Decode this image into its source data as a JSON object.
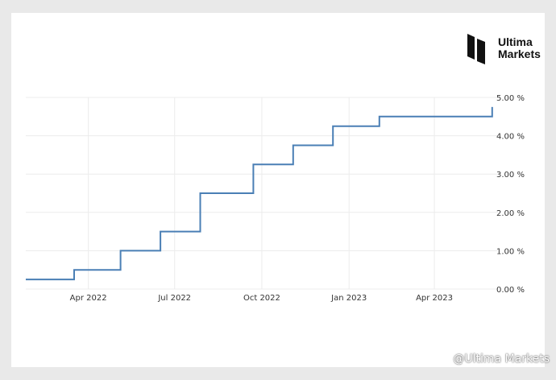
{
  "brand": {
    "line1": "Ultima",
    "line2": "Markets"
  },
  "watermark": {
    "text": "@Ultima Markets"
  },
  "colors": {
    "line": "#4a7fb5",
    "grid": "#ececec"
  },
  "chart_data": {
    "type": "line",
    "step": true,
    "title": "",
    "xlabel": "",
    "ylabel": "",
    "ylim": [
      0,
      5
    ],
    "y_ticks": [
      0,
      1,
      2,
      3,
      4,
      5
    ],
    "y_tick_labels": [
      "0.00 %",
      "1.00 %",
      "2.00 %",
      "3.00 %",
      "4.00 %",
      "5.00 %"
    ],
    "x_ticks": [
      "2022-04-01",
      "2022-07-01",
      "2022-10-01",
      "2023-01-01",
      "2023-04-01"
    ],
    "x_tick_labels": [
      "Apr 2022",
      "Jul 2022",
      "Oct 2022",
      "Jan 2023",
      "Apr 2023"
    ],
    "xlim": [
      "2022-01-25",
      "2023-06-02"
    ],
    "grid": true,
    "y_axis_position": "right",
    "series": [
      {
        "x": [
          "2022-01-25",
          "2022-03-17",
          "2022-05-05",
          "2022-06-16",
          "2022-07-28",
          "2022-09-22",
          "2022-11-03",
          "2022-12-15",
          "2023-02-02",
          "2023-06-01"
        ],
        "values": [
          0.25,
          0.5,
          1.0,
          1.5,
          2.5,
          3.25,
          3.75,
          4.25,
          4.5,
          4.75
        ]
      }
    ]
  }
}
